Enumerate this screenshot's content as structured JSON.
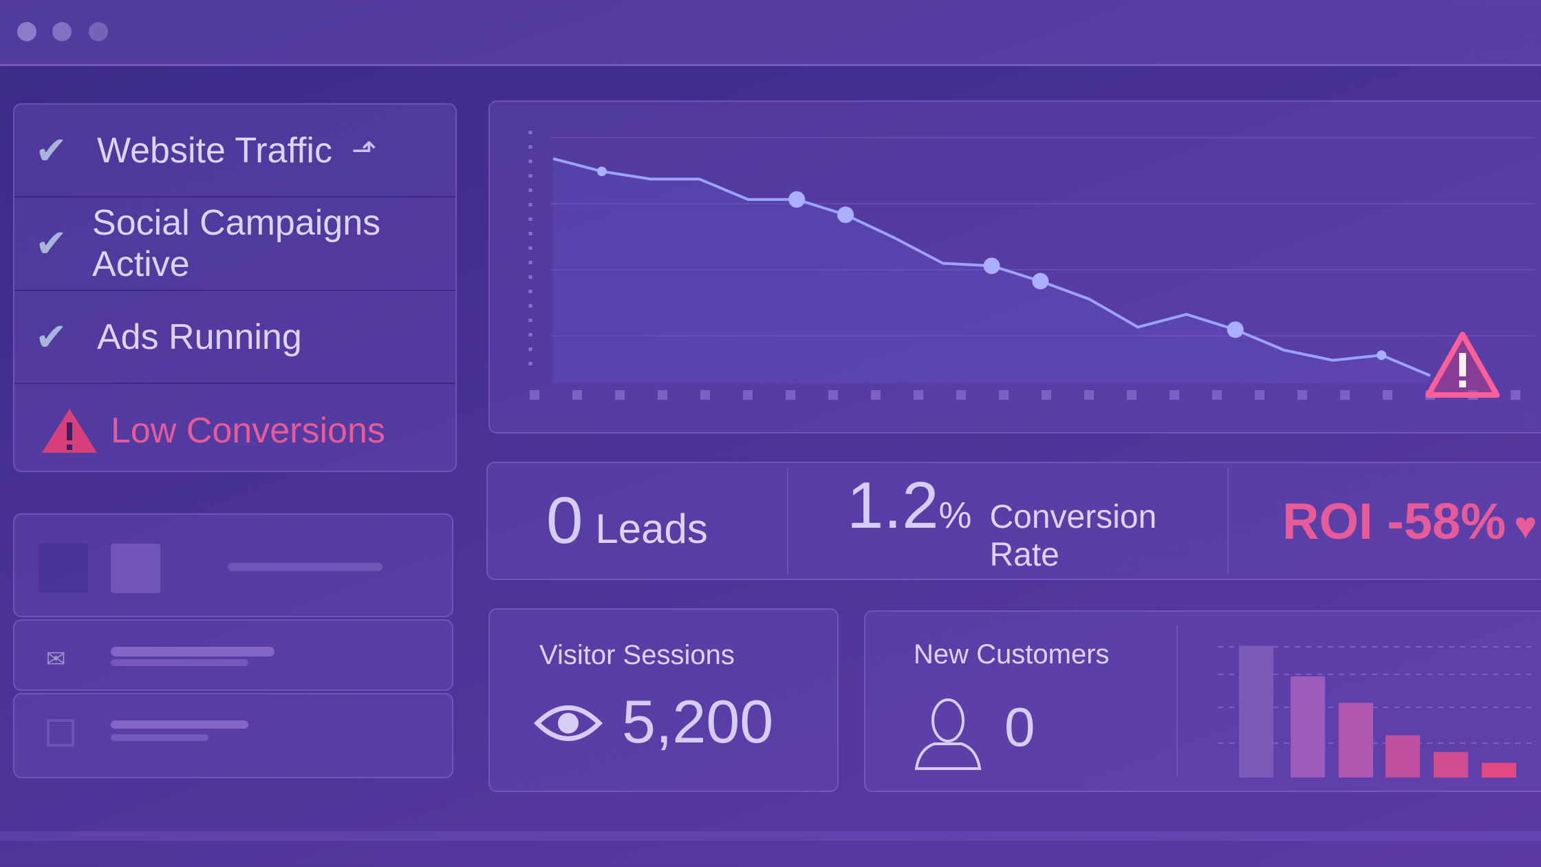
{
  "status_list": [
    "Website Traffic",
    "Social Campaigns Active",
    "Ads Running",
    "Low Conversions"
  ],
  "trend_chart": {
    "type": "line",
    "values": [
      88,
      83,
      80,
      80,
      72,
      72,
      66,
      57,
      47,
      46,
      40,
      33,
      22,
      27,
      21,
      13,
      9,
      11,
      3
    ],
    "ylim": [
      0,
      100
    ],
    "color": "#9aa4ff"
  },
  "kpis": {
    "leads_value": "0",
    "leads_label": "Leads",
    "conversion_value": "1.2",
    "conversion_unit": "%",
    "conversion_label": "Conversion Rate",
    "roi": "ROI -58%"
  },
  "visitor_card": {
    "title": "Visitor Sessions",
    "value": "5,200"
  },
  "customers_card": {
    "title": "New Customers",
    "value": "0"
  },
  "customers_chart": {
    "type": "bar",
    "values": [
      134,
      103,
      76,
      43,
      26,
      15
    ],
    "ylim": [
      0,
      140
    ],
    "colors": [
      "#7a5cb8",
      "#9a5cb8",
      "#b055b0",
      "#c04fa0",
      "#d04c90",
      "#e04a80"
    ]
  }
}
